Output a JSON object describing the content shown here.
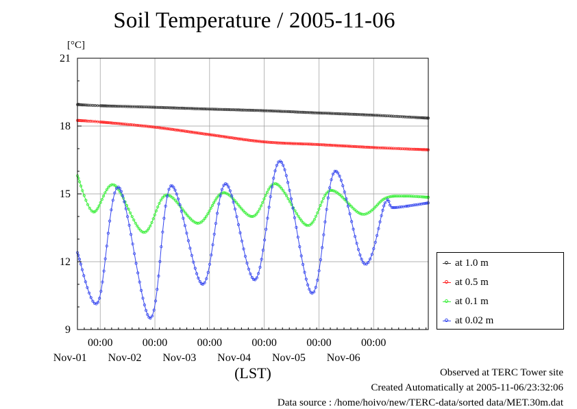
{
  "chart_data": {
    "type": "line",
    "title": "Soil Temperature / 2005-11-06",
    "ylabel": "[°C]",
    "xlabel": "(LST)",
    "ylim": [
      9,
      21
    ],
    "yticks": [
      9,
      12,
      15,
      18,
      21
    ],
    "xlim": [
      "2005-10-31T14:00",
      "2005-11-07T00:00"
    ],
    "xticks": [
      {
        "x": "2005-11-01T00:00",
        "time": "00:00",
        "date": "Nov-01"
      },
      {
        "x": "2005-11-02T00:00",
        "time": "00:00",
        "date": "Nov-02"
      },
      {
        "x": "2005-11-03T00:00",
        "time": "00:00",
        "date": "Nov-03"
      },
      {
        "x": "2005-11-04T00:00",
        "time": "00:00",
        "date": "Nov-04"
      },
      {
        "x": "2005-11-05T00:00",
        "time": "00:00",
        "date": "Nov-05"
      },
      {
        "x": "2005-11-06T00:00",
        "time": "00:00",
        "date": "Nov-06"
      }
    ],
    "grid": true,
    "legend_position": "right",
    "series": [
      {
        "name": "at 1.0 m",
        "color": "#333333",
        "points": [
          [
            "2005-10-31T14:00",
            18.95
          ],
          [
            "2005-11-01T00:00",
            18.9
          ],
          [
            "2005-11-02T00:00",
            18.83
          ],
          [
            "2005-11-03T00:00",
            18.75
          ],
          [
            "2005-11-04T00:00",
            18.68
          ],
          [
            "2005-11-05T00:00",
            18.58
          ],
          [
            "2005-11-06T00:00",
            18.48
          ],
          [
            "2005-11-07T00:00",
            18.35
          ]
        ]
      },
      {
        "name": "at 0.5 m",
        "color": "#ff2020",
        "points": [
          [
            "2005-10-31T14:00",
            18.25
          ],
          [
            "2005-11-01T00:00",
            18.18
          ],
          [
            "2005-11-02T00:00",
            17.95
          ],
          [
            "2005-11-03T00:00",
            17.62
          ],
          [
            "2005-11-04T00:00",
            17.3
          ],
          [
            "2005-11-05T00:00",
            17.18
          ],
          [
            "2005-11-06T00:00",
            17.05
          ],
          [
            "2005-11-07T00:00",
            16.95
          ]
        ]
      },
      {
        "name": "at 0.1 m",
        "color": "#33ee33",
        "points": [
          [
            "2005-10-31T14:00",
            15.8
          ],
          [
            "2005-10-31T21:00",
            14.2
          ],
          [
            "2005-11-01T06:00",
            15.4
          ],
          [
            "2005-11-01T19:00",
            13.3
          ],
          [
            "2005-11-02T05:00",
            14.95
          ],
          [
            "2005-11-02T19:00",
            13.7
          ],
          [
            "2005-11-03T06:00",
            15.05
          ],
          [
            "2005-11-03T19:00",
            14.0
          ],
          [
            "2005-11-04T05:00",
            15.45
          ],
          [
            "2005-11-04T19:00",
            13.6
          ],
          [
            "2005-11-05T05:00",
            15.15
          ],
          [
            "2005-11-05T19:00",
            14.1
          ],
          [
            "2005-11-06T05:00",
            14.8
          ],
          [
            "2005-11-06T13:00",
            14.9
          ],
          [
            "2005-11-07T00:00",
            14.85
          ]
        ]
      },
      {
        "name": "at 0.02 m",
        "color": "#3344ee",
        "points": [
          [
            "2005-10-31T14:00",
            12.4
          ],
          [
            "2005-10-31T23:00",
            10.2
          ],
          [
            "2005-11-01T08:00",
            15.3
          ],
          [
            "2005-11-01T22:00",
            9.5
          ],
          [
            "2005-11-02T07:00",
            15.35
          ],
          [
            "2005-11-02T21:00",
            11.0
          ],
          [
            "2005-11-03T07:00",
            15.45
          ],
          [
            "2005-11-03T20:00",
            11.2
          ],
          [
            "2005-11-04T07:00",
            16.45
          ],
          [
            "2005-11-04T21:00",
            10.6
          ],
          [
            "2005-11-05T07:00",
            16.0
          ],
          [
            "2005-11-05T20:00",
            11.9
          ],
          [
            "2005-11-06T05:00",
            14.6
          ],
          [
            "2005-11-06T08:00",
            14.4
          ],
          [
            "2005-11-06T14:00",
            14.45
          ],
          [
            "2005-11-07T00:00",
            14.6
          ]
        ]
      }
    ]
  },
  "footer": {
    "observed": "Observed at TERC Tower site",
    "created": "Created Automatically at 2005-11-06/23:32:06",
    "source": "Data source : /home/hoivo/new/TERC-data/sorted  data/MET.30m.dat"
  }
}
